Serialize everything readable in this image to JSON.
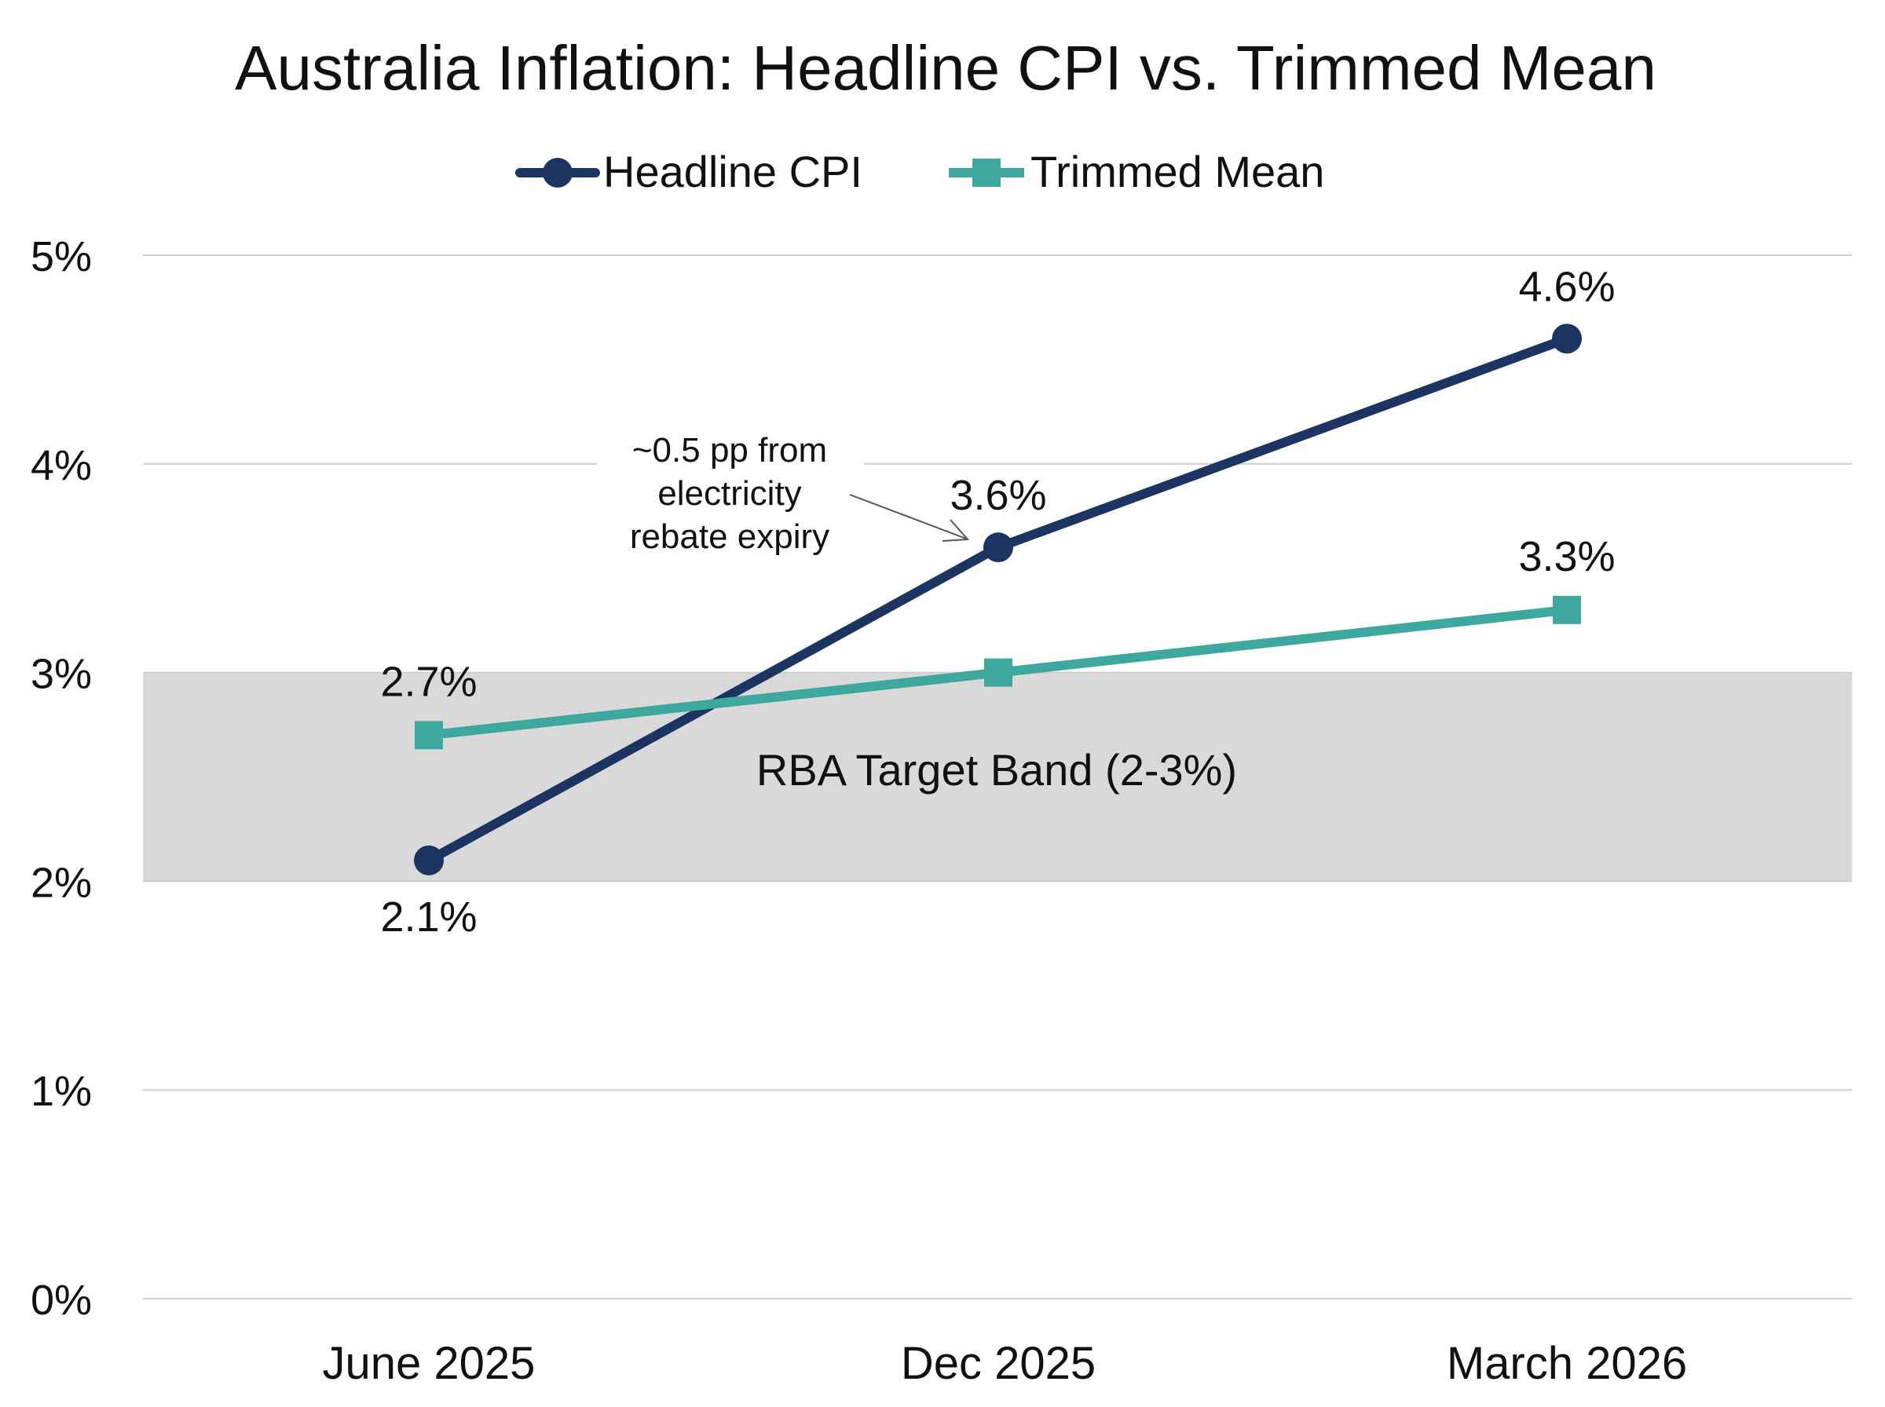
{
  "chart_data": {
    "type": "line",
    "title": "Australia Inflation: Headline CPI vs. Trimmed Mean",
    "categories": [
      "June 2025",
      "Dec 2025",
      "March 2026"
    ],
    "series": [
      {
        "name": "Headline CPI",
        "values": [
          2.1,
          3.6,
          4.6
        ],
        "labels": [
          "2.1%",
          "3.6%",
          "4.6%"
        ],
        "color": "#1b3461",
        "marker": "circle"
      },
      {
        "name": "Trimmed Mean",
        "values": [
          2.7,
          3.0,
          3.3
        ],
        "labels": [
          "2.7%",
          "",
          "3.3%"
        ],
        "color": "#3ea89e",
        "marker": "square"
      }
    ],
    "ylim": [
      0,
      5
    ],
    "yticks": [
      0,
      1,
      2,
      3,
      4,
      5
    ],
    "ytick_labels": [
      "0%",
      "1%",
      "2%",
      "3%",
      "4%",
      "5%"
    ],
    "grid": true,
    "legend": "top-center",
    "band": {
      "from": 2,
      "to": 3,
      "label": "RBA Target Band (2-3%)",
      "color": "#d9d9d9"
    },
    "annotation": {
      "lines": [
        "~0.5 pp from",
        "electricity",
        "rebate expiry"
      ],
      "points_to": {
        "series": "Headline CPI",
        "category": "Dec 2025"
      }
    }
  }
}
